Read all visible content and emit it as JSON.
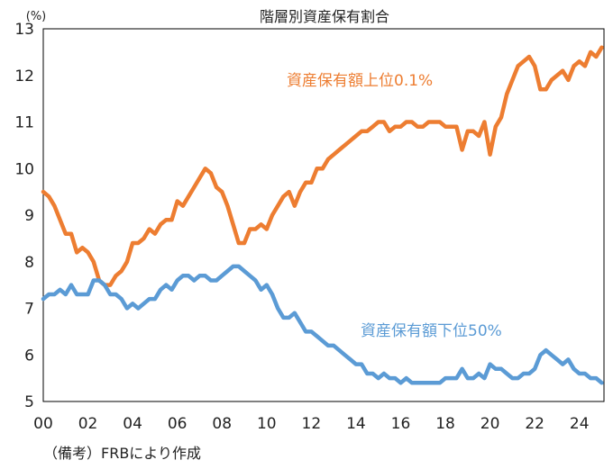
{
  "chart_data": {
    "type": "line",
    "title": "階層別資産保有割合",
    "unit_label": "(%)",
    "ylim": [
      5,
      13
    ],
    "yticks": [
      "5",
      "6",
      "7",
      "8",
      "9",
      "10",
      "11",
      "12",
      "13"
    ],
    "xlim": [
      2000,
      2025.1
    ],
    "xticks": [
      "00",
      "02",
      "04",
      "06",
      "08",
      "10",
      "12",
      "14",
      "16",
      "18",
      "20",
      "22",
      "24"
    ],
    "grid": false,
    "note": "（備考）FRBにより作成",
    "series": [
      {
        "name": "資産保有額上位0.1%",
        "color": "#ED7D31",
        "points": [
          [
            2000.0,
            9.5
          ],
          [
            2000.25,
            9.4
          ],
          [
            2000.5,
            9.2
          ],
          [
            2000.75,
            8.9
          ],
          [
            2001.0,
            8.6
          ],
          [
            2001.25,
            8.6
          ],
          [
            2001.5,
            8.2
          ],
          [
            2001.75,
            8.3
          ],
          [
            2002.0,
            8.2
          ],
          [
            2002.25,
            8.0
          ],
          [
            2002.5,
            7.6
          ],
          [
            2002.75,
            7.5
          ],
          [
            2003.0,
            7.5
          ],
          [
            2003.25,
            7.7
          ],
          [
            2003.5,
            7.8
          ],
          [
            2003.75,
            8.0
          ],
          [
            2004.0,
            8.4
          ],
          [
            2004.25,
            8.4
          ],
          [
            2004.5,
            8.5
          ],
          [
            2004.75,
            8.7
          ],
          [
            2005.0,
            8.6
          ],
          [
            2005.25,
            8.8
          ],
          [
            2005.5,
            8.9
          ],
          [
            2005.75,
            8.9
          ],
          [
            2006.0,
            9.3
          ],
          [
            2006.25,
            9.2
          ],
          [
            2006.5,
            9.4
          ],
          [
            2006.75,
            9.6
          ],
          [
            2007.0,
            9.8
          ],
          [
            2007.25,
            10.0
          ],
          [
            2007.5,
            9.9
          ],
          [
            2007.75,
            9.6
          ],
          [
            2008.0,
            9.5
          ],
          [
            2008.25,
            9.2
          ],
          [
            2008.5,
            8.8
          ],
          [
            2008.75,
            8.4
          ],
          [
            2009.0,
            8.4
          ],
          [
            2009.25,
            8.7
          ],
          [
            2009.5,
            8.7
          ],
          [
            2009.75,
            8.8
          ],
          [
            2010.0,
            8.7
          ],
          [
            2010.25,
            9.0
          ],
          [
            2010.5,
            9.2
          ],
          [
            2010.75,
            9.4
          ],
          [
            2011.0,
            9.5
          ],
          [
            2011.25,
            9.2
          ],
          [
            2011.5,
            9.5
          ],
          [
            2011.75,
            9.7
          ],
          [
            2012.0,
            9.7
          ],
          [
            2012.25,
            10.0
          ],
          [
            2012.5,
            10.0
          ],
          [
            2012.75,
            10.2
          ],
          [
            2013.0,
            10.3
          ],
          [
            2013.25,
            10.4
          ],
          [
            2013.5,
            10.5
          ],
          [
            2013.75,
            10.6
          ],
          [
            2014.0,
            10.7
          ],
          [
            2014.25,
            10.8
          ],
          [
            2014.5,
            10.8
          ],
          [
            2014.75,
            10.9
          ],
          [
            2015.0,
            11.0
          ],
          [
            2015.25,
            11.0
          ],
          [
            2015.5,
            10.8
          ],
          [
            2015.75,
            10.9
          ],
          [
            2016.0,
            10.9
          ],
          [
            2016.25,
            11.0
          ],
          [
            2016.5,
            11.0
          ],
          [
            2016.75,
            10.9
          ],
          [
            2017.0,
            10.9
          ],
          [
            2017.25,
            11.0
          ],
          [
            2017.5,
            11.0
          ],
          [
            2017.75,
            11.0
          ],
          [
            2018.0,
            10.9
          ],
          [
            2018.25,
            10.9
          ],
          [
            2018.5,
            10.9
          ],
          [
            2018.75,
            10.4
          ],
          [
            2019.0,
            10.8
          ],
          [
            2019.25,
            10.8
          ],
          [
            2019.5,
            10.7
          ],
          [
            2019.75,
            11.0
          ],
          [
            2020.0,
            10.3
          ],
          [
            2020.25,
            10.9
          ],
          [
            2020.5,
            11.1
          ],
          [
            2020.75,
            11.6
          ],
          [
            2021.0,
            11.9
          ],
          [
            2021.25,
            12.2
          ],
          [
            2021.5,
            12.3
          ],
          [
            2021.75,
            12.4
          ],
          [
            2022.0,
            12.2
          ],
          [
            2022.25,
            11.7
          ],
          [
            2022.5,
            11.7
          ],
          [
            2022.75,
            11.9
          ],
          [
            2023.0,
            12.0
          ],
          [
            2023.25,
            12.1
          ],
          [
            2023.5,
            11.9
          ],
          [
            2023.75,
            12.2
          ],
          [
            2024.0,
            12.3
          ],
          [
            2024.25,
            12.2
          ],
          [
            2024.5,
            12.5
          ],
          [
            2024.75,
            12.4
          ],
          [
            2025.0,
            12.6
          ]
        ]
      },
      {
        "name": "資産保有額下位50%",
        "color": "#5B9BD5",
        "points": [
          [
            2000.0,
            7.2
          ],
          [
            2000.25,
            7.3
          ],
          [
            2000.5,
            7.3
          ],
          [
            2000.75,
            7.4
          ],
          [
            2001.0,
            7.3
          ],
          [
            2001.25,
            7.5
          ],
          [
            2001.5,
            7.3
          ],
          [
            2001.75,
            7.3
          ],
          [
            2002.0,
            7.3
          ],
          [
            2002.25,
            7.6
          ],
          [
            2002.5,
            7.6
          ],
          [
            2002.75,
            7.5
          ],
          [
            2003.0,
            7.3
          ],
          [
            2003.25,
            7.3
          ],
          [
            2003.5,
            7.2
          ],
          [
            2003.75,
            7.0
          ],
          [
            2004.0,
            7.1
          ],
          [
            2004.25,
            7.0
          ],
          [
            2004.5,
            7.1
          ],
          [
            2004.75,
            7.2
          ],
          [
            2005.0,
            7.2
          ],
          [
            2005.25,
            7.4
          ],
          [
            2005.5,
            7.5
          ],
          [
            2005.75,
            7.4
          ],
          [
            2006.0,
            7.6
          ],
          [
            2006.25,
            7.7
          ],
          [
            2006.5,
            7.7
          ],
          [
            2006.75,
            7.6
          ],
          [
            2007.0,
            7.7
          ],
          [
            2007.25,
            7.7
          ],
          [
            2007.5,
            7.6
          ],
          [
            2007.75,
            7.6
          ],
          [
            2008.0,
            7.7
          ],
          [
            2008.25,
            7.8
          ],
          [
            2008.5,
            7.9
          ],
          [
            2008.75,
            7.9
          ],
          [
            2009.0,
            7.8
          ],
          [
            2009.25,
            7.7
          ],
          [
            2009.5,
            7.6
          ],
          [
            2009.75,
            7.4
          ],
          [
            2010.0,
            7.5
          ],
          [
            2010.25,
            7.3
          ],
          [
            2010.5,
            7.0
          ],
          [
            2010.75,
            6.8
          ],
          [
            2011.0,
            6.8
          ],
          [
            2011.25,
            6.9
          ],
          [
            2011.5,
            6.7
          ],
          [
            2011.75,
            6.5
          ],
          [
            2012.0,
            6.5
          ],
          [
            2012.25,
            6.4
          ],
          [
            2012.5,
            6.3
          ],
          [
            2012.75,
            6.2
          ],
          [
            2013.0,
            6.2
          ],
          [
            2013.25,
            6.1
          ],
          [
            2013.5,
            6.0
          ],
          [
            2013.75,
            5.9
          ],
          [
            2014.0,
            5.8
          ],
          [
            2014.25,
            5.8
          ],
          [
            2014.5,
            5.6
          ],
          [
            2014.75,
            5.6
          ],
          [
            2015.0,
            5.5
          ],
          [
            2015.25,
            5.6
          ],
          [
            2015.5,
            5.5
          ],
          [
            2015.75,
            5.5
          ],
          [
            2016.0,
            5.4
          ],
          [
            2016.25,
            5.5
          ],
          [
            2016.5,
            5.4
          ],
          [
            2016.75,
            5.4
          ],
          [
            2017.0,
            5.4
          ],
          [
            2017.25,
            5.4
          ],
          [
            2017.5,
            5.4
          ],
          [
            2017.75,
            5.4
          ],
          [
            2018.0,
            5.5
          ],
          [
            2018.25,
            5.5
          ],
          [
            2018.5,
            5.5
          ],
          [
            2018.75,
            5.7
          ],
          [
            2019.0,
            5.5
          ],
          [
            2019.25,
            5.5
          ],
          [
            2019.5,
            5.6
          ],
          [
            2019.75,
            5.5
          ],
          [
            2020.0,
            5.8
          ],
          [
            2020.25,
            5.7
          ],
          [
            2020.5,
            5.7
          ],
          [
            2020.75,
            5.6
          ],
          [
            2021.0,
            5.5
          ],
          [
            2021.25,
            5.5
          ],
          [
            2021.5,
            5.6
          ],
          [
            2021.75,
            5.6
          ],
          [
            2022.0,
            5.7
          ],
          [
            2022.25,
            6.0
          ],
          [
            2022.5,
            6.1
          ],
          [
            2022.75,
            6.0
          ],
          [
            2023.0,
            5.9
          ],
          [
            2023.25,
            5.8
          ],
          [
            2023.5,
            5.9
          ],
          [
            2023.75,
            5.7
          ],
          [
            2024.0,
            5.6
          ],
          [
            2024.25,
            5.6
          ],
          [
            2024.5,
            5.5
          ],
          [
            2024.75,
            5.5
          ],
          [
            2025.0,
            5.4
          ]
        ]
      }
    ]
  }
}
